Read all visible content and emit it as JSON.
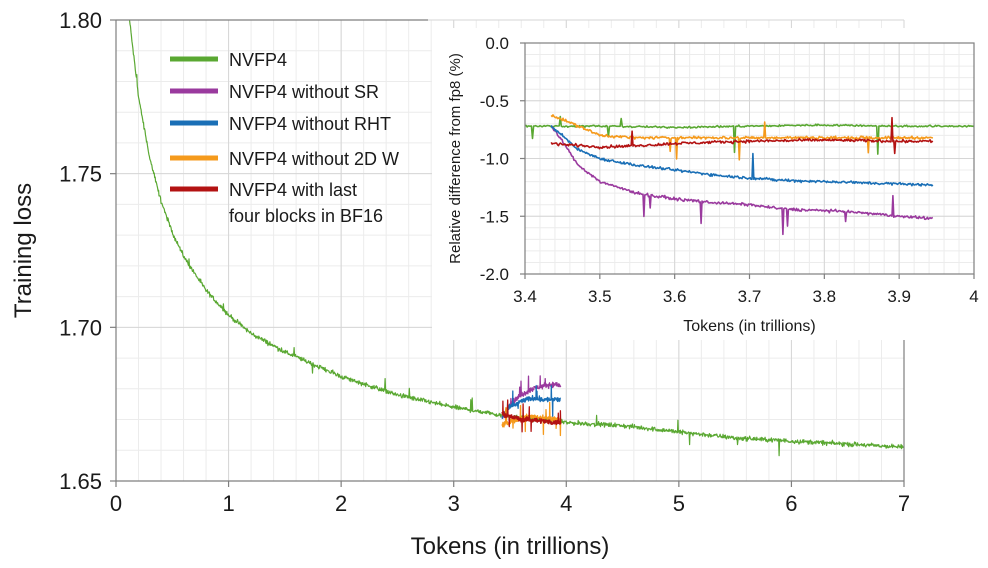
{
  "chart_data": [
    {
      "type": "line",
      "name": "main",
      "title": "",
      "xlabel": "Tokens (in trillions)",
      "ylabel": "Training loss",
      "xlim": [
        0,
        7
      ],
      "ylim": [
        1.65,
        1.8
      ],
      "x_ticks": [
        0,
        1,
        2,
        3,
        4,
        5,
        6,
        7
      ],
      "x_tick_labels": [
        "0",
        "1",
        "2",
        "3",
        "4",
        "5",
        "6",
        "7"
      ],
      "y_ticks": [
        1.65,
        1.7,
        1.75,
        1.8
      ],
      "y_tick_labels": [
        "1.65",
        "1.70",
        "1.75",
        "1.80"
      ],
      "grid": true,
      "series": [
        {
          "name": "NVFP4",
          "color": "#5aa832",
          "x": [
            0.12,
            0.2,
            0.3,
            0.4,
            0.5,
            0.6,
            0.8,
            1.0,
            1.2,
            1.5,
            2.0,
            2.5,
            3.0,
            3.5,
            4.0,
            4.5,
            5.0,
            5.5,
            6.0,
            6.5,
            7.0
          ],
          "y": [
            1.8,
            1.775,
            1.755,
            1.741,
            1.731,
            1.723,
            1.712,
            1.704,
            1.698,
            1.692,
            1.684,
            1.678,
            1.674,
            1.671,
            1.669,
            1.668,
            1.666,
            1.664,
            1.663,
            1.662,
            1.661
          ]
        },
        {
          "name": "NVFP4 without SR",
          "color": "#9a3a9e",
          "x": [
            3.43,
            3.5,
            3.6,
            3.7,
            3.8,
            3.9,
            3.95
          ],
          "y": [
            1.6705,
            1.675,
            1.678,
            1.68,
            1.681,
            1.6815,
            1.681
          ]
        },
        {
          "name": "NVFP4 without RHT",
          "color": "#1a6fb6",
          "x": [
            3.43,
            3.5,
            3.6,
            3.7,
            3.8,
            3.9,
            3.95
          ],
          "y": [
            1.6705,
            1.674,
            1.676,
            1.677,
            1.6765,
            1.6765,
            1.6765
          ]
        },
        {
          "name": "NVFP4 without  2D W",
          "color": "#f59a1c",
          "x": [
            3.43,
            3.5,
            3.6,
            3.7,
            3.8,
            3.9,
            3.95
          ],
          "y": [
            1.668,
            1.6695,
            1.6705,
            1.671,
            1.6705,
            1.67,
            1.67
          ]
        },
        {
          "name": "NVFP4 with last four blocks in BF16",
          "color": "#b31212",
          "x": [
            3.43,
            3.5,
            3.6,
            3.7,
            3.8,
            3.9,
            3.95
          ],
          "y": [
            1.672,
            1.671,
            1.67,
            1.67,
            1.6695,
            1.669,
            1.669
          ]
        }
      ]
    },
    {
      "type": "line",
      "name": "inset",
      "title": "",
      "xlabel": "Tokens (in trillions)",
      "ylabel": "Relative difference from fp8 (%)",
      "xlim": [
        3.4,
        4.0
      ],
      "ylim": [
        -2.0,
        0.0
      ],
      "x_ticks": [
        3.4,
        3.5,
        3.6,
        3.7,
        3.8,
        3.9,
        4.0
      ],
      "x_tick_labels": [
        "3.4",
        "3.5",
        "3.6",
        "3.7",
        "3.8",
        "3.9",
        "4"
      ],
      "y_ticks": [
        0.0,
        -0.5,
        -1.0,
        -1.5,
        -2.0
      ],
      "y_tick_labels": [
        "0.0",
        "-0.5",
        "-1.0",
        "-1.5",
        "-2.0"
      ],
      "grid": true,
      "series": [
        {
          "name": "NVFP4",
          "color": "#5aa832",
          "x": [
            3.4,
            3.5,
            3.6,
            3.7,
            3.8,
            3.9,
            4.0
          ],
          "y": [
            -0.72,
            -0.72,
            -0.73,
            -0.72,
            -0.71,
            -0.72,
            -0.72
          ]
        },
        {
          "name": "NVFP4 without SR",
          "color": "#9a3a9e",
          "x": [
            3.435,
            3.45,
            3.47,
            3.5,
            3.55,
            3.6,
            3.65,
            3.7,
            3.75,
            3.8,
            3.85,
            3.9,
            3.945
          ],
          "y": [
            -0.72,
            -0.85,
            -1.05,
            -1.2,
            -1.3,
            -1.35,
            -1.38,
            -1.4,
            -1.44,
            -1.45,
            -1.47,
            -1.5,
            -1.52
          ]
        },
        {
          "name": "NVFP4 without RHT",
          "color": "#1a6fb6",
          "x": [
            3.435,
            3.45,
            3.47,
            3.5,
            3.55,
            3.6,
            3.65,
            3.7,
            3.75,
            3.8,
            3.85,
            3.9,
            3.945
          ],
          "y": [
            -0.72,
            -0.8,
            -0.92,
            -1.0,
            -1.06,
            -1.1,
            -1.14,
            -1.17,
            -1.19,
            -1.2,
            -1.21,
            -1.22,
            -1.23
          ]
        },
        {
          "name": "NVFP4 without  2D W",
          "color": "#f59a1c",
          "x": [
            3.435,
            3.5,
            3.55,
            3.6,
            3.7,
            3.8,
            3.9,
            3.945
          ],
          "y": [
            -0.62,
            -0.8,
            -0.82,
            -0.82,
            -0.82,
            -0.82,
            -0.82,
            -0.82
          ]
        },
        {
          "name": "NVFP4 with last four blocks in BF16",
          "color": "#b31212",
          "x": [
            3.435,
            3.5,
            3.55,
            3.6,
            3.7,
            3.8,
            3.9,
            3.945
          ],
          "y": [
            -0.87,
            -0.9,
            -0.89,
            -0.87,
            -0.85,
            -0.84,
            -0.85,
            -0.85
          ]
        }
      ]
    }
  ],
  "legend": {
    "items": [
      {
        "lines": [
          "NVFP4"
        ],
        "color": "#5aa832"
      },
      {
        "lines": [
          "NVFP4 without SR"
        ],
        "color": "#9a3a9e"
      },
      {
        "lines": [
          "NVFP4 without RHT"
        ],
        "color": "#1a6fb6"
      },
      {
        "lines": [
          "NVFP4 without  2D W"
        ],
        "color": "#f59a1c"
      },
      {
        "lines": [
          "NVFP4 with last",
          "four blocks in BF16"
        ],
        "color": "#b31212"
      }
    ]
  }
}
